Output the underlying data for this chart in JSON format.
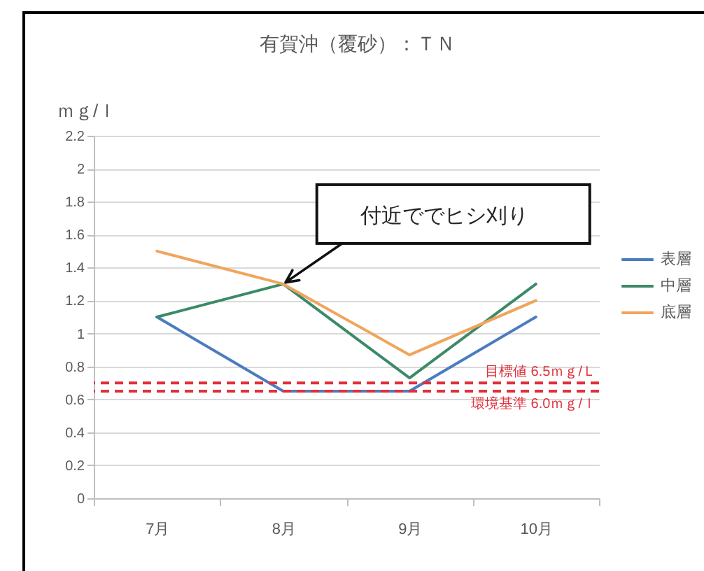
{
  "chart_data": {
    "type": "line",
    "title": "有賀沖（覆砂）：ＴＮ",
    "ylabel": "ｍｇ/ｌ",
    "categories": [
      "7月",
      "8月",
      "9月",
      "10月"
    ],
    "series": [
      {
        "name": "表層",
        "color": "#4a7cc0",
        "values": [
          1.1,
          0.65,
          0.65,
          1.1
        ]
      },
      {
        "name": "中層",
        "color": "#3b8a68",
        "values": [
          1.1,
          1.3,
          0.73,
          1.3
        ]
      },
      {
        "name": "底層",
        "color": "#f0a55c",
        "values": [
          1.5,
          1.3,
          0.87,
          1.2
        ]
      }
    ],
    "ylim": [
      0,
      2.2
    ],
    "yticks": [
      0,
      0.2,
      0.4,
      0.6,
      0.8,
      1,
      1.2,
      1.4,
      1.6,
      1.8,
      2,
      2.2
    ],
    "grid": "y",
    "legend": "right",
    "marker": "none",
    "line_style": "solid",
    "ref_lines": [
      {
        "axis": "y",
        "value": 0.7,
        "label": "目標値 6.5ｍｇ/Ｌ",
        "color": "#e0303c",
        "line_style": "dashed"
      },
      {
        "axis": "y",
        "value": 0.65,
        "label": "環境基準 6.0ｍｇ/ｌ",
        "color": "#e0303c",
        "line_style": "dashed"
      }
    ],
    "annotations": [
      {
        "text": "付近ででヒシ刈り",
        "x": "8月",
        "y": 1.3
      }
    ]
  }
}
